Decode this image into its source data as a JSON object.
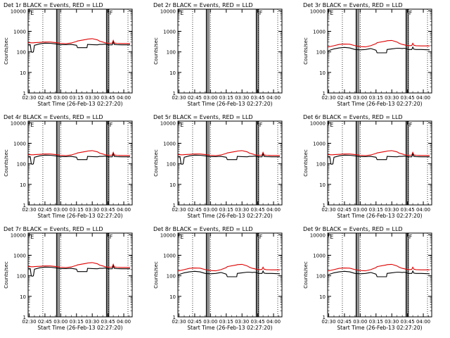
{
  "chart_data": [
    {
      "title": "Det 1r BLACK = Events, RED = LLD",
      "type": "line",
      "profile": 1,
      "xlabel": "Start Time (26-Feb-13 02:27:20)",
      "ylabel": "Counts/sec"
    },
    {
      "title": "Det 2r BLACK = Events, RED = LLD",
      "type": "line",
      "profile": 0,
      "xlabel": "Start Time (26-Feb-13 02:27:20)",
      "ylabel": "Counts/sec"
    },
    {
      "title": "Det 3r BLACK = Events, RED = LLD",
      "type": "line",
      "profile": 3,
      "xlabel": "Start Time (26-Feb-13 02:27:20)",
      "ylabel": "Counts/sec"
    },
    {
      "title": "Det 4r BLACK = Events, RED = LLD",
      "type": "line",
      "profile": 1,
      "xlabel": "Start Time (26-Feb-13 02:27:20)",
      "ylabel": "Counts/sec"
    },
    {
      "title": "Det 5r BLACK = Events, RED = LLD",
      "type": "line",
      "profile": 1,
      "xlabel": "Start Time (26-Feb-13 02:27:20)",
      "ylabel": "Counts/sec"
    },
    {
      "title": "Det 6r BLACK = Events, RED = LLD",
      "type": "line",
      "profile": 1,
      "xlabel": "Start Time (26-Feb-13 02:27:20)",
      "ylabel": "Counts/sec"
    },
    {
      "title": "Det 7r BLACK = Events, RED = LLD",
      "type": "line",
      "profile": 1,
      "xlabel": "Start Time (26-Feb-13 02:27:20)",
      "ylabel": "Counts/sec"
    },
    {
      "title": "Det 8r BLACK = Events, RED = LLD",
      "type": "line",
      "profile": 3,
      "xlabel": "Start Time (26-Feb-13 02:27:20)",
      "ylabel": "Counts/sec"
    },
    {
      "title": "Det 9r BLACK = Events, RED = LLD",
      "type": "line",
      "profile": 3,
      "xlabel": "Start Time (26-Feb-13 02:27:20)",
      "ylabel": "Counts/sec"
    }
  ],
  "shared": {
    "xticks": [
      "02:30",
      "02:45",
      "03:00",
      "03:15",
      "03:30",
      "03:45",
      "04:00"
    ],
    "xtick_minutes": [
      150,
      165,
      180,
      195,
      210,
      225,
      240
    ],
    "xlim_minutes": [
      149,
      248
    ],
    "yticks": [
      "1",
      "10",
      "100",
      "1000",
      "10000"
    ],
    "ylim": [
      1,
      12000
    ],
    "yscale": "log",
    "dotted_minutes": [
      163,
      180,
      225.5,
      244
    ],
    "solid_minutes": [
      176,
      177,
      178.5,
      223.5,
      224.5,
      225.8
    ],
    "markers": [
      {
        "label": "E",
        "minute": 150.5
      },
      {
        "label": "F",
        "minute": 225.8
      }
    ],
    "profiles": [
      {
        "times": [],
        "events": [],
        "lld": []
      },
      {
        "times": [
          149,
          151,
          152,
          153,
          154,
          155,
          160,
          165,
          170,
          175,
          180,
          185,
          190,
          195,
          196,
          205,
          205.5,
          210,
          215,
          217,
          220,
          222,
          224,
          226,
          229,
          230,
          231,
          233,
          238,
          246
        ],
        "events": [
          230,
          225,
          100,
          95,
          100,
          210,
          245,
          265,
          260,
          245,
          225,
          225,
          230,
          210,
          160,
          160,
          230,
          225,
          220,
          230,
          230,
          240,
          230,
          220,
          220,
          300,
          230,
          225,
          220,
          220
        ],
        "lld": [
          280,
          280,
          275,
          275,
          275,
          280,
          290,
          300,
          300,
          285,
          260,
          250,
          270,
          320,
          340,
          410,
          420,
          440,
          380,
          330,
          300,
          280,
          265,
          260,
          265,
          360,
          270,
          260,
          255,
          255
        ]
      },
      {
        "times": [],
        "events": [],
        "lld": []
      },
      {
        "times": [
          149,
          155,
          160,
          165,
          170,
          175,
          180,
          185,
          190,
          195,
          196,
          205,
          205.5,
          210,
          215,
          217,
          220,
          222,
          224,
          226,
          229,
          230,
          231,
          233,
          238,
          246
        ],
        "events": [
          110,
          140,
          155,
          165,
          155,
          130,
          125,
          130,
          145,
          120,
          90,
          90,
          130,
          140,
          150,
          150,
          145,
          150,
          140,
          130,
          130,
          170,
          135,
          130,
          130,
          125
        ],
        "lld": [
          170,
          200,
          230,
          240,
          235,
          200,
          180,
          175,
          200,
          250,
          280,
          340,
          350,
          360,
          300,
          260,
          230,
          220,
          205,
          200,
          205,
          260,
          210,
          200,
          195,
          195
        ]
      }
    ]
  }
}
